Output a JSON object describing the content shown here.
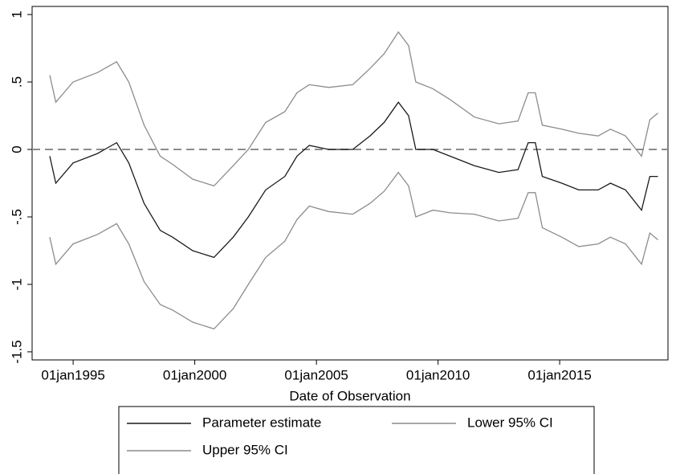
{
  "chart_data": {
    "type": "line",
    "x_label": "Date of Observation",
    "x": [
      "1994-01-15",
      "1994-04-15",
      "1995-01-01",
      "1996-01-01",
      "1996-10-15",
      "1997-04-15",
      "1997-12-01",
      "1998-08-01",
      "1999-02-01",
      "1999-12-01",
      "2000-10-15",
      "2001-08-01",
      "2002-03-15",
      "2002-12-01",
      "2003-09-15",
      "2004-03-15",
      "2004-09-15",
      "2005-07-01",
      "2006-07-01",
      "2007-03-15",
      "2007-10-15",
      "2008-05-15",
      "2008-10-15",
      "2009-02-01",
      "2009-10-15",
      "2010-07-01",
      "2011-07-01",
      "2012-07-01",
      "2013-04-15",
      "2013-09-15",
      "2014-01-01",
      "2014-04-15",
      "2015-02-01",
      "2015-10-15",
      "2016-08-01",
      "2017-02-01",
      "2017-09-15",
      "2018-05-15",
      "2018-09-15",
      "2019-01-15"
    ],
    "series": [
      {
        "name": "Parameter estimate",
        "color": "#1a1a1a",
        "values": [
          -0.05,
          -0.25,
          -0.1,
          -0.03,
          0.05,
          -0.1,
          -0.4,
          -0.6,
          -0.65,
          -0.75,
          -0.8,
          -0.65,
          -0.5,
          -0.3,
          -0.2,
          -0.05,
          0.03,
          0.0,
          0.0,
          0.1,
          0.2,
          0.35,
          0.25,
          0.0,
          0.0,
          -0.05,
          -0.12,
          -0.17,
          -0.15,
          0.05,
          0.05,
          -0.2,
          -0.25,
          -0.3,
          -0.3,
          -0.25,
          -0.3,
          -0.45,
          -0.2,
          -0.2
        ]
      },
      {
        "name": "Lower 95% CI",
        "color": "#8c8c8c",
        "values": [
          -0.65,
          -0.85,
          -0.7,
          -0.63,
          -0.55,
          -0.7,
          -0.98,
          -1.15,
          -1.19,
          -1.28,
          -1.33,
          -1.18,
          -1.0,
          -0.8,
          -0.68,
          -0.52,
          -0.42,
          -0.46,
          -0.48,
          -0.4,
          -0.31,
          -0.17,
          -0.27,
          -0.5,
          -0.45,
          -0.47,
          -0.48,
          -0.53,
          -0.51,
          -0.32,
          -0.32,
          -0.58,
          -0.65,
          -0.72,
          -0.7,
          -0.65,
          -0.7,
          -0.85,
          -0.62,
          -0.67
        ]
      },
      {
        "name": "Upper 95% CI",
        "color": "#8c8c8c",
        "values": [
          0.55,
          0.35,
          0.5,
          0.57,
          0.65,
          0.5,
          0.18,
          -0.05,
          -0.11,
          -0.22,
          -0.27,
          -0.12,
          0.0,
          0.2,
          0.28,
          0.42,
          0.48,
          0.46,
          0.48,
          0.6,
          0.71,
          0.87,
          0.77,
          0.5,
          0.45,
          0.37,
          0.24,
          0.19,
          0.21,
          0.42,
          0.42,
          0.18,
          0.15,
          0.12,
          0.1,
          0.15,
          0.1,
          -0.05,
          0.22,
          0.27
        ]
      }
    ],
    "xlim": [
      "1993-04-25",
      "2019-06-15"
    ],
    "xticks": [
      {
        "value": "1995-01-01",
        "label": "01jan1995"
      },
      {
        "value": "2000-01-01",
        "label": "01jan2000"
      },
      {
        "value": "2005-01-01",
        "label": "01jan2005"
      },
      {
        "value": "2010-01-01",
        "label": "01jan2010"
      },
      {
        "value": "2015-01-01",
        "label": "01jan2015"
      }
    ],
    "ylim": [
      -1.56,
      1.06
    ],
    "yticks": [
      {
        "value": -1.5,
        "label": "-1.5"
      },
      -1,
      {
        "value": -0.5,
        "label": "-.5"
      },
      0,
      {
        "value": 0.5,
        "label": ".5"
      },
      1
    ],
    "yline": 0,
    "yline_color": "#8c8c8c",
    "legend": "bottom"
  }
}
